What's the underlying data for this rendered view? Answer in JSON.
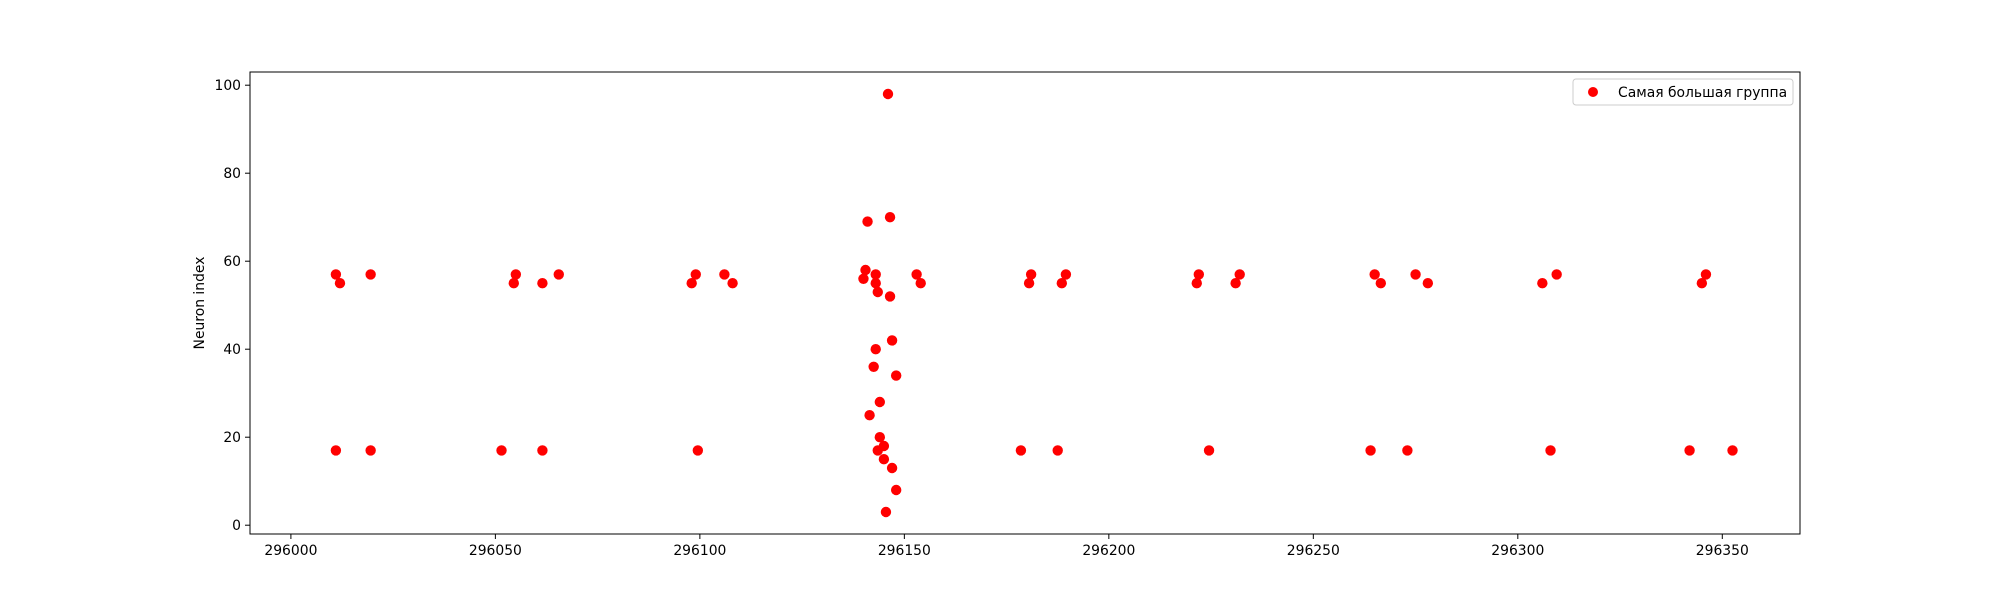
{
  "chart_data": {
    "type": "scatter",
    "title": "",
    "xlabel": "",
    "ylabel": "Neuron index",
    "xlim": [
      295990,
      296369
    ],
    "ylim": [
      -2,
      103
    ],
    "grid": false,
    "legend_position": "top-right",
    "x_ticks": [
      296000,
      296050,
      296100,
      296150,
      296200,
      296250,
      296300,
      296350
    ],
    "x_tick_labels": [
      "296000",
      "296050",
      "296100",
      "296150",
      "296200",
      "296250",
      "296300",
      "296350"
    ],
    "y_ticks": [
      0,
      20,
      40,
      60,
      80,
      100
    ],
    "y_tick_labels": [
      "0",
      "20",
      "40",
      "60",
      "80",
      "100"
    ],
    "series": [
      {
        "name": "Самая большая группа",
        "color": "#ff0000",
        "marker": "circle",
        "points": [
          [
            296011,
            57
          ],
          [
            296012,
            55
          ],
          [
            296019.5,
            57
          ],
          [
            296011,
            17
          ],
          [
            296019.5,
            17
          ],
          [
            296055,
            57
          ],
          [
            296054.5,
            55
          ],
          [
            296061.5,
            55
          ],
          [
            296065.5,
            57
          ],
          [
            296051.5,
            17
          ],
          [
            296061.5,
            17
          ],
          [
            296099,
            57
          ],
          [
            296098,
            55
          ],
          [
            296106,
            57
          ],
          [
            296108,
            55
          ],
          [
            296099.5,
            17
          ],
          [
            296140.5,
            58
          ],
          [
            296140,
            56
          ],
          [
            296143,
            57
          ],
          [
            296143,
            55
          ],
          [
            296143.5,
            53
          ],
          [
            296146.5,
            52
          ],
          [
            296153,
            57
          ],
          [
            296154,
            55
          ],
          [
            296141,
            69
          ],
          [
            296146.5,
            70
          ],
          [
            296146,
            98
          ],
          [
            296143,
            40
          ],
          [
            296147,
            42
          ],
          [
            296142.5,
            36
          ],
          [
            296148,
            34
          ],
          [
            296144,
            28
          ],
          [
            296141.5,
            25
          ],
          [
            296144,
            20
          ],
          [
            296143.5,
            17
          ],
          [
            296145,
            18
          ],
          [
            296145,
            15
          ],
          [
            296147,
            13
          ],
          [
            296148,
            8
          ],
          [
            296145.5,
            3
          ],
          [
            296181,
            57
          ],
          [
            296180.5,
            55
          ],
          [
            296189.5,
            57
          ],
          [
            296188.5,
            55
          ],
          [
            296178.5,
            17
          ],
          [
            296187.5,
            17
          ],
          [
            296222,
            57
          ],
          [
            296221.5,
            55
          ],
          [
            296232,
            57
          ],
          [
            296231,
            55
          ],
          [
            296224.5,
            17
          ],
          [
            296265,
            57
          ],
          [
            296266.5,
            55
          ],
          [
            296275,
            57
          ],
          [
            296278,
            55
          ],
          [
            296264,
            17
          ],
          [
            296273,
            17
          ],
          [
            296309.5,
            57
          ],
          [
            296306,
            55
          ],
          [
            296308,
            17
          ],
          [
            296346,
            57
          ],
          [
            296345,
            55
          ],
          [
            296342,
            17
          ],
          [
            296352.5,
            17
          ]
        ]
      }
    ]
  }
}
